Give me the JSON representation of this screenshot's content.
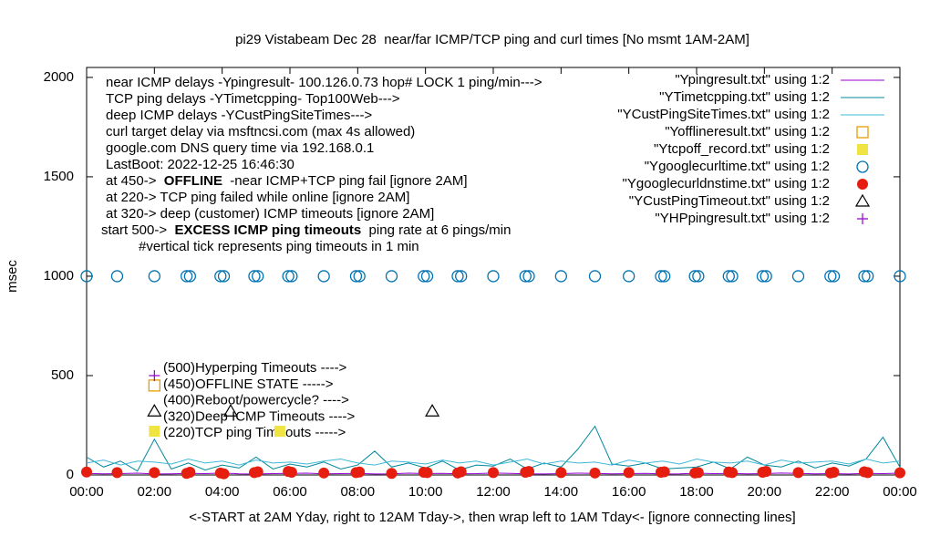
{
  "chart_data": {
    "type": "line",
    "title": "pi29 Vistabeam Dec 28  near/far ICMP/TCP ping and curl times [No msmt 1AM-2AM]",
    "xlabel": "<-START at 2AM Yday, right to 12AM Tday->, then wrap left to 1AM Tday<- [ignore connecting lines]",
    "ylabel": "msec",
    "xlim": [
      0,
      24
    ],
    "xticks": [
      {
        "value": 0,
        "label": "00:00"
      },
      {
        "value": 2,
        "label": "02:00"
      },
      {
        "value": 4,
        "label": "04:00"
      },
      {
        "value": 6,
        "label": "06:00"
      },
      {
        "value": 8,
        "label": "08:00"
      },
      {
        "value": 10,
        "label": "10:00"
      },
      {
        "value": 12,
        "label": "12:00"
      },
      {
        "value": 14,
        "label": "14:00"
      },
      {
        "value": 16,
        "label": "16:00"
      },
      {
        "value": 18,
        "label": "18:00"
      },
      {
        "value": 20,
        "label": "20:00"
      },
      {
        "value": 22,
        "label": "22:00"
      },
      {
        "value": 24,
        "label": "00:00"
      }
    ],
    "ylim": [
      0,
      2050
    ],
    "yticks": [
      0,
      500,
      1000,
      1500,
      2000
    ],
    "grid": false,
    "legend": "top right",
    "notes": [
      [
        {
          "text": "near ICMP delays -Ypingresult- 100.126.0.73 hop# LOCK 1 ping/min--->",
          "bold": false
        }
      ],
      [
        {
          "text": "TCP ping delays -YTimetcpping- Top100Web--->",
          "bold": false
        }
      ],
      [
        {
          "text": "deep ICMP delays -YCustPingSiteTimes--->",
          "bold": false
        }
      ],
      [
        {
          "text": "curl target delay via msftncsi.com (max 4s allowed)",
          "bold": false
        }
      ],
      [
        {
          "text": "google.com DNS query time via 192.168.0.1",
          "bold": false
        }
      ],
      [
        {
          "text": "LastBoot: 2022-12-25 16:46:30",
          "bold": false
        }
      ],
      [
        {
          "text": "at 450->  ",
          "bold": false
        },
        {
          "text": "OFFLINE",
          "bold": true
        },
        {
          "text": "  -near ICMP+TCP ping fail [ignore 2AM]",
          "bold": false
        }
      ],
      [
        {
          "text": "at 220-> TCP ping failed while online [ignore 2AM]",
          "bold": false
        }
      ],
      [
        {
          "text": "at 320-> deep (customer) ICMP timeouts [ignore 2AM]",
          "bold": false
        }
      ],
      [
        {
          "text": "start 500->  ",
          "bold": false
        },
        {
          "text": "EXCESS ICMP ping timeouts",
          "bold": true
        },
        {
          "text": "  ping rate at 6 pings/min",
          "bold": false
        }
      ],
      [
        {
          "text": "#vertical tick represents ping timeouts in 1 min",
          "bold": false
        }
      ]
    ],
    "annotations": [
      "(500)Hyperping Timeouts ---->",
      "(450)OFFLINE STATE ----->",
      "(400)Reboot/powercycle? ---->",
      "(320)Deep ICMP Timeouts ---->",
      "(220)TCP ping Timeouts ----->"
    ],
    "x": [
      0,
      0.5,
      1,
      1.5,
      2,
      2.5,
      3,
      3.5,
      4,
      4.5,
      5,
      5.5,
      6,
      6.5,
      7,
      7.5,
      8,
      8.5,
      9,
      9.5,
      10,
      10.5,
      11,
      11.5,
      12,
      12.5,
      13,
      13.5,
      14,
      14.5,
      15,
      15.5,
      16,
      16.5,
      17,
      17.5,
      18,
      18.5,
      19,
      19.5,
      20,
      20.5,
      21,
      21.5,
      22,
      22.5,
      23,
      23.5,
      24
    ],
    "series": [
      {
        "name": "\"Ypingresult.txt\" using 1:2",
        "color": "#9400d3",
        "style": "line",
        "values": [
          8,
          6,
          7,
          9,
          5,
          6,
          8,
          7,
          10,
          6,
          5,
          7,
          8,
          9,
          6,
          7,
          8,
          5,
          6,
          9,
          7,
          8,
          6,
          7,
          10,
          8,
          6,
          5,
          7,
          9,
          8,
          6,
          7,
          8,
          5,
          6,
          9,
          7,
          8,
          6,
          7,
          10,
          8,
          6,
          7,
          5,
          8,
          7,
          9
        ]
      },
      {
        "name": "\"YTimetcpping.txt\" using 1:2",
        "color": "#00889a",
        "style": "line",
        "values": [
          90,
          40,
          70,
          20,
          180,
          30,
          60,
          25,
          50,
          35,
          90,
          30,
          55,
          40,
          65,
          30,
          50,
          120,
          40,
          60,
          35,
          70,
          25,
          50,
          45,
          80,
          30,
          60,
          40,
          130,
          245,
          55,
          45,
          60,
          30,
          35,
          40,
          65,
          30,
          90,
          50,
          40,
          70,
          35,
          60,
          45,
          80,
          190,
          40
        ]
      },
      {
        "name": "\"YCustPingSiteTimes.txt\" using 1:2",
        "color": "#40b8d8",
        "style": "line",
        "values": [
          60,
          75,
          50,
          70,
          65,
          55,
          80,
          60,
          70,
          50,
          75,
          60,
          65,
          55,
          70,
          80,
          60,
          50,
          70,
          65,
          55,
          75,
          60,
          70,
          50,
          65,
          80,
          55,
          70,
          60,
          65,
          50,
          75,
          60,
          70,
          55,
          80,
          65,
          60,
          70,
          50,
          75,
          60,
          65,
          70,
          55,
          80,
          60,
          70
        ]
      },
      {
        "name": "\"Yofflineresult.txt\" using 1:2",
        "color": "#e69f00",
        "style": "points",
        "marker": "open-square",
        "x": [
          2.0
        ],
        "values": [
          450
        ]
      },
      {
        "name": "\"Ytcpoff_record.txt\" using 1:2",
        "color": "#f0e442",
        "style": "points",
        "marker": "filled-square",
        "x": [
          2.0,
          5.7
        ],
        "values": [
          220,
          220
        ]
      },
      {
        "name": "\"Ygooglecurltime.txt\" using 1:2",
        "color": "#0072b2",
        "style": "points",
        "marker": "open-circle",
        "x": [
          0,
          0.9,
          2.0,
          2.95,
          3.05,
          3.95,
          4.05,
          4.95,
          5.05,
          5.95,
          6.05,
          7.0,
          7.95,
          8.05,
          9.0,
          9.95,
          10.05,
          10.95,
          11.05,
          12.0,
          12.95,
          13.05,
          14.0,
          15.0,
          16.0,
          16.95,
          17.05,
          17.95,
          18.05,
          18.95,
          19.05,
          19.95,
          20.05,
          21.0,
          21.95,
          22.05,
          22.95,
          23.05,
          24.0
        ],
        "values": [
          1000,
          1000,
          1000,
          1000,
          1000,
          1000,
          1000,
          1000,
          1000,
          1000,
          1000,
          1000,
          1000,
          1000,
          1000,
          1000,
          1000,
          1000,
          1000,
          1000,
          1000,
          1000,
          1000,
          1000,
          1000,
          1000,
          1000,
          1000,
          1000,
          1000,
          1000,
          1000,
          1000,
          1000,
          1000,
          1000,
          1000,
          1000,
          1000
        ]
      },
      {
        "name": "\"Ygooglecurldnstime.txt\" using 1:2",
        "color": "#e51e10",
        "style": "points",
        "marker": "filled-circle",
        "x": [
          0,
          0.9,
          2.0,
          2.95,
          3.05,
          3.95,
          4.05,
          4.95,
          5.05,
          5.95,
          6.05,
          7.0,
          7.95,
          8.05,
          9.0,
          9.95,
          10.05,
          10.95,
          11.05,
          12.0,
          12.95,
          13.05,
          14.0,
          15.0,
          16.0,
          16.95,
          17.05,
          17.95,
          18.05,
          18.95,
          19.05,
          19.95,
          20.05,
          21.0,
          21.95,
          22.05,
          22.95,
          23.05,
          24.0
        ],
        "values": [
          15,
          12,
          12,
          8,
          14,
          10,
          6,
          12,
          16,
          18,
          14,
          10,
          12,
          15,
          8,
          14,
          12,
          10,
          16,
          12,
          14,
          18,
          12,
          10,
          12,
          14,
          16,
          10,
          12,
          15,
          12,
          14,
          18,
          12,
          10,
          14,
          16,
          12,
          11
        ]
      },
      {
        "name": "\"YCustPingTimeout.txt\" using 1:2",
        "color": "#000000",
        "style": "points",
        "marker": "open-triangle",
        "x": [
          2.0,
          4.25,
          10.2
        ],
        "values": [
          320,
          320,
          320
        ]
      },
      {
        "name": "\"YHPpingresult.txt\" using 1:2",
        "color": "#9400d3",
        "style": "points",
        "marker": "plus",
        "x": [
          2.0
        ],
        "values": [
          500
        ]
      }
    ]
  }
}
